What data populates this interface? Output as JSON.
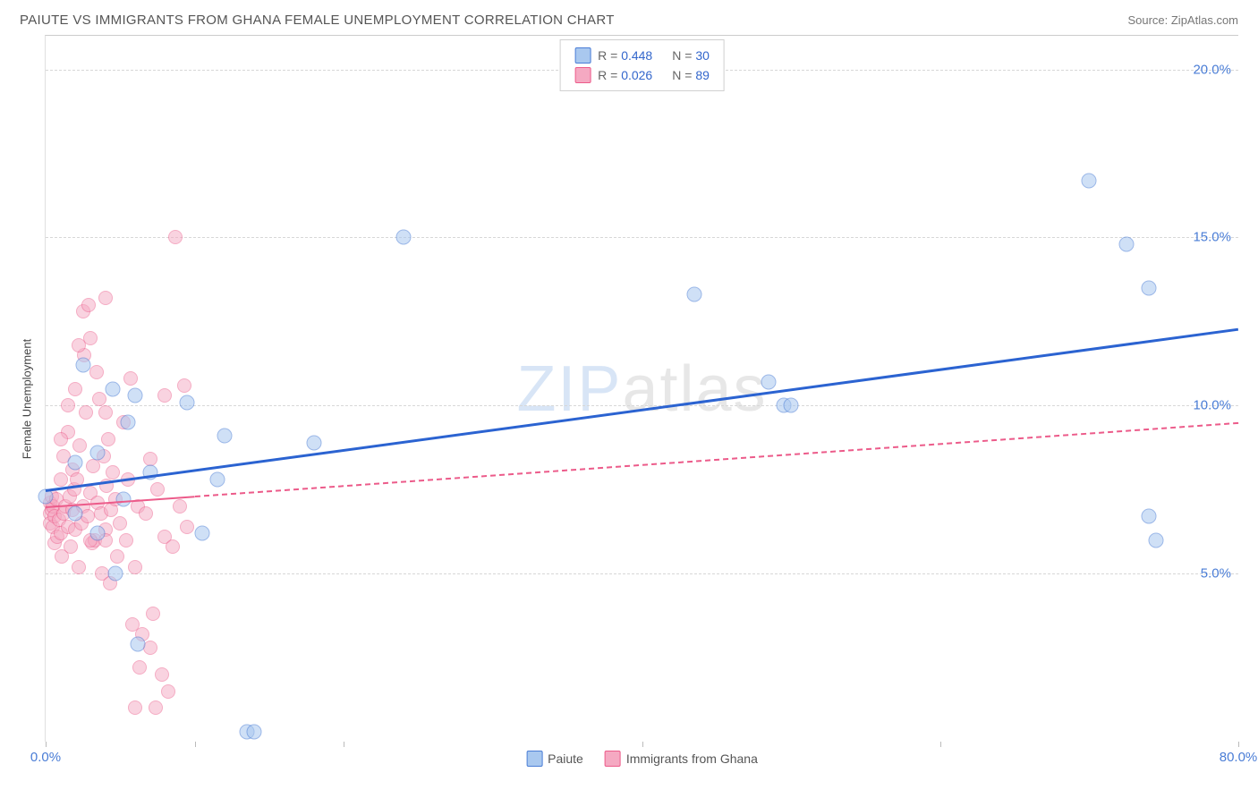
{
  "title": "PAIUTE VS IMMIGRANTS FROM GHANA FEMALE UNEMPLOYMENT CORRELATION CHART",
  "source": "Source: ZipAtlas.com",
  "watermark": {
    "zip": "ZIP",
    "atlas": "atlas"
  },
  "chart": {
    "type": "scatter",
    "background_color": "#ffffff",
    "grid_color": "#d7d7d7",
    "y_label": "Female Unemployment",
    "x_domain": [
      0,
      80
    ],
    "y_domain": [
      0,
      21
    ],
    "y_ticks": [
      5,
      10,
      15,
      20
    ],
    "y_tick_labels": [
      "5.0%",
      "10.0%",
      "15.0%",
      "20.0%"
    ],
    "y_tick_color": "#4a7dd6",
    "x_ticks": [
      0,
      10,
      20,
      40,
      60,
      80
    ],
    "x_labels_show": [
      {
        "v": 0,
        "t": "0.0%"
      },
      {
        "v": 80,
        "t": "80.0%"
      }
    ],
    "x_label_color": "#4a7dd6"
  },
  "series": {
    "paiute": {
      "label": "Paiute",
      "fill_color": "#a9c8ef",
      "fill_opacity": 0.55,
      "stroke_color": "#4a7dd6",
      "R": "0.448",
      "N": "30",
      "marker_size": 17,
      "regression": {
        "x1": 0,
        "y1": 7.5,
        "x2": 80,
        "y2": 12.3,
        "color": "#2b63d1",
        "width": 3,
        "dashed": false,
        "solid_until_x": 80
      },
      "points": [
        [
          0.0,
          7.3
        ],
        [
          2.5,
          11.2
        ],
        [
          6.0,
          10.3
        ],
        [
          6.2,
          2.9
        ],
        [
          9.5,
          10.1
        ],
        [
          10.5,
          6.2
        ],
        [
          11.5,
          7.8
        ],
        [
          12.0,
          9.1
        ],
        [
          2.0,
          6.8
        ],
        [
          2.0,
          8.3
        ],
        [
          3.5,
          6.2
        ],
        [
          4.5,
          10.5
        ],
        [
          5.5,
          9.5
        ],
        [
          7.0,
          8.0
        ],
        [
          18.0,
          8.9
        ],
        [
          4.7,
          5.0
        ],
        [
          24.0,
          15.0
        ],
        [
          43.5,
          13.3
        ],
        [
          48.5,
          10.7
        ],
        [
          49.5,
          10.0
        ],
        [
          50.0,
          10.0
        ],
        [
          70.0,
          16.7
        ],
        [
          72.5,
          14.8
        ],
        [
          74.0,
          13.5
        ],
        [
          74.5,
          6.0
        ],
        [
          74.0,
          6.7
        ],
        [
          13.5,
          0.3
        ],
        [
          14.0,
          0.3
        ],
        [
          3.5,
          8.6
        ],
        [
          5.2,
          7.2
        ]
      ]
    },
    "ghana": {
      "label": "Immigrants from Ghana",
      "fill_color": "#f5a9c2",
      "fill_opacity": 0.5,
      "stroke_color": "#ec5b8a",
      "R": "0.026",
      "N": "89",
      "marker_size": 16,
      "regression": {
        "x1": 0,
        "y1": 7.0,
        "x2": 80,
        "y2": 9.5,
        "color": "#ec5b8a",
        "width": 2,
        "dashed": true,
        "solid_until_x": 10
      },
      "points": [
        [
          0.3,
          6.8
        ],
        [
          0.3,
          7.1
        ],
        [
          0.3,
          6.5
        ],
        [
          0.4,
          7.3
        ],
        [
          0.4,
          6.9
        ],
        [
          0.5,
          6.4
        ],
        [
          0.5,
          7.0
        ],
        [
          0.6,
          6.7
        ],
        [
          0.6,
          5.9
        ],
        [
          0.7,
          7.2
        ],
        [
          0.8,
          6.1
        ],
        [
          0.9,
          6.6
        ],
        [
          1.0,
          7.8
        ],
        [
          1.0,
          6.2
        ],
        [
          1.1,
          5.5
        ],
        [
          1.2,
          6.8
        ],
        [
          1.2,
          8.5
        ],
        [
          1.3,
          7.0
        ],
        [
          1.5,
          6.4
        ],
        [
          1.5,
          9.2
        ],
        [
          1.6,
          7.3
        ],
        [
          1.7,
          5.8
        ],
        [
          1.8,
          8.1
        ],
        [
          1.8,
          6.9
        ],
        [
          1.9,
          7.5
        ],
        [
          2.0,
          6.3
        ],
        [
          2.0,
          10.5
        ],
        [
          2.1,
          7.8
        ],
        [
          2.2,
          5.2
        ],
        [
          2.3,
          8.8
        ],
        [
          2.4,
          6.5
        ],
        [
          2.5,
          12.8
        ],
        [
          2.5,
          7.0
        ],
        [
          2.6,
          11.5
        ],
        [
          2.7,
          9.8
        ],
        [
          2.8,
          6.7
        ],
        [
          2.9,
          13.0
        ],
        [
          3.0,
          7.4
        ],
        [
          3.0,
          12.0
        ],
        [
          3.1,
          5.9
        ],
        [
          3.2,
          8.2
        ],
        [
          3.3,
          6.0
        ],
        [
          3.4,
          11.0
        ],
        [
          3.5,
          7.1
        ],
        [
          3.6,
          10.2
        ],
        [
          3.7,
          6.8
        ],
        [
          3.8,
          5.0
        ],
        [
          3.9,
          8.5
        ],
        [
          4.0,
          6.3
        ],
        [
          4.0,
          13.2
        ],
        [
          4.1,
          7.6
        ],
        [
          4.2,
          9.0
        ],
        [
          4.3,
          4.7
        ],
        [
          4.4,
          6.9
        ],
        [
          4.5,
          8.0
        ],
        [
          4.7,
          7.2
        ],
        [
          4.8,
          5.5
        ],
        [
          5.0,
          6.5
        ],
        [
          5.2,
          9.5
        ],
        [
          5.4,
          6.0
        ],
        [
          5.5,
          7.8
        ],
        [
          5.7,
          10.8
        ],
        [
          6.0,
          5.2
        ],
        [
          6.2,
          7.0
        ],
        [
          6.5,
          3.2
        ],
        [
          6.7,
          6.8
        ],
        [
          7.0,
          2.8
        ],
        [
          7.0,
          8.4
        ],
        [
          7.2,
          3.8
        ],
        [
          7.4,
          1.0
        ],
        [
          7.5,
          7.5
        ],
        [
          7.8,
          2.0
        ],
        [
          8.0,
          10.3
        ],
        [
          8.0,
          6.1
        ],
        [
          8.2,
          1.5
        ],
        [
          8.5,
          5.8
        ],
        [
          8.7,
          15.0
        ],
        [
          9.0,
          7.0
        ],
        [
          9.3,
          10.6
        ],
        [
          9.5,
          6.4
        ],
        [
          5.8,
          3.5
        ],
        [
          6.0,
          1.0
        ],
        [
          6.3,
          2.2
        ],
        [
          3.0,
          6.0
        ],
        [
          2.2,
          11.8
        ],
        [
          1.0,
          9.0
        ],
        [
          1.5,
          10.0
        ],
        [
          4.0,
          9.8
        ],
        [
          4.0,
          6.0
        ]
      ]
    }
  },
  "legend_top": {
    "border_color": "#d0d0d0",
    "R_prefix": "R = ",
    "N_prefix": "N = ",
    "value_color": "#3366cc",
    "label_color": "#666"
  },
  "legend_bottom": {
    "text_color": "#555"
  }
}
